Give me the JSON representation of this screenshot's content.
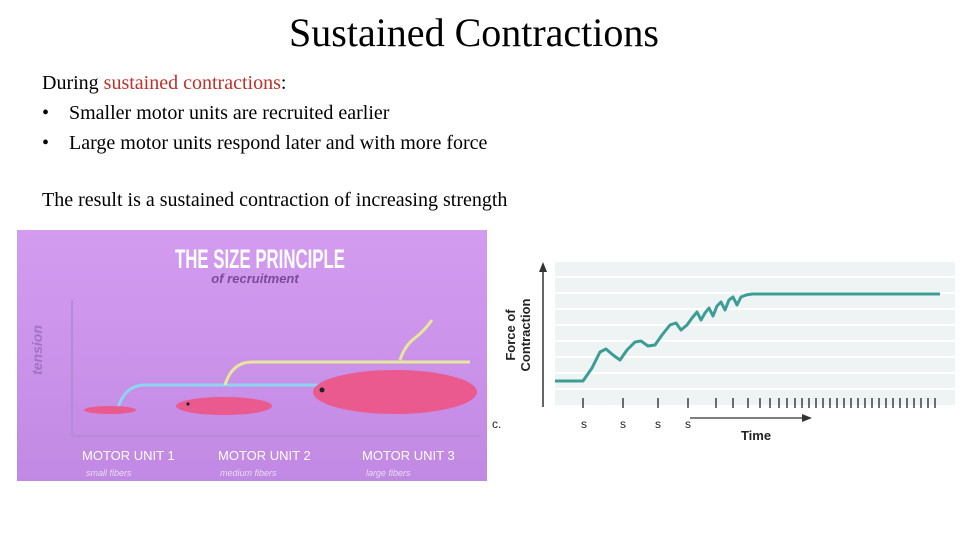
{
  "title": "Sustained Contractions",
  "intro": {
    "lead": "During ",
    "highlight": "sustained contractions",
    "tail": ":"
  },
  "bullets": [
    "Smaller motor units are recruited earlier",
    "Large motor units respond later and with more force"
  ],
  "bullet_symbol": "•",
  "result": "The result is a sustained contraction of increasing strength",
  "illustration": {
    "title": "THE SIZE PRINCIPLE",
    "subtitle": "of recruitment",
    "axis_label": "tension",
    "units": [
      {
        "name": "MOTOR UNIT 1",
        "fibers": "small fibers"
      },
      {
        "name": "MOTOR UNIT 2",
        "fibers": "medium fibers"
      },
      {
        "name": "MOTOR UNIT 3",
        "fibers": "large fibers"
      }
    ]
  },
  "graph": {
    "panel": "c.",
    "y_label": [
      "Force of",
      "Contraction"
    ],
    "x_label": "Time",
    "stimuli": [
      "s",
      "s",
      "s",
      "s"
    ]
  }
}
